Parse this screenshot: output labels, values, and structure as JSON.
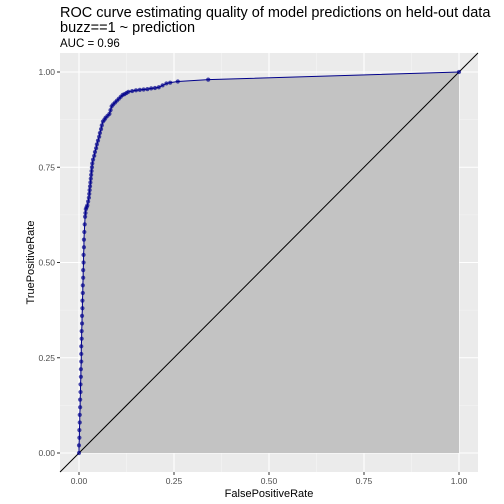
{
  "chart_data": {
    "type": "line",
    "title": "ROC curve estimating quality of model predictions on held-out data",
    "title_line2": "buzz==1 ~ prediction",
    "subtitle": "AUC = 0.96",
    "xlabel": "FalsePositiveRate",
    "ylabel": "TruePositiveRate",
    "xlim": [
      0,
      1
    ],
    "ylim": [
      0,
      1
    ],
    "x_ticks": [
      0.0,
      0.25,
      0.5,
      0.75,
      1.0
    ],
    "x_tick_labels": [
      "0.00",
      "0.25",
      "0.50",
      "0.75",
      "1.00"
    ],
    "y_ticks": [
      0.0,
      0.25,
      0.5,
      0.75,
      1.0
    ],
    "y_tick_labels": [
      "0.00",
      "0.25",
      "0.50",
      "0.75",
      "1.00"
    ],
    "grid": true,
    "diagonal_reference": true,
    "area_fill": true,
    "colors": {
      "panel_background": "#ebebeb",
      "grid_major": "#ffffff",
      "area_fill": "#c3c3c3",
      "curve": "#00008b",
      "diagonal": "#000000"
    },
    "series": [
      {
        "points": [
          [
            0.0,
            0.0
          ],
          [
            0.0,
            0.02
          ],
          [
            0.001,
            0.04
          ],
          [
            0.001,
            0.06
          ],
          [
            0.002,
            0.08
          ],
          [
            0.002,
            0.1
          ],
          [
            0.003,
            0.12
          ],
          [
            0.003,
            0.14
          ],
          [
            0.004,
            0.16
          ],
          [
            0.004,
            0.18
          ],
          [
            0.005,
            0.2
          ],
          [
            0.005,
            0.22
          ],
          [
            0.006,
            0.24
          ],
          [
            0.006,
            0.26
          ],
          [
            0.006,
            0.28
          ],
          [
            0.007,
            0.3
          ],
          [
            0.007,
            0.32
          ],
          [
            0.008,
            0.34
          ],
          [
            0.008,
            0.36
          ],
          [
            0.009,
            0.38
          ],
          [
            0.009,
            0.4
          ],
          [
            0.01,
            0.42
          ],
          [
            0.01,
            0.44
          ],
          [
            0.011,
            0.46
          ],
          [
            0.011,
            0.48
          ],
          [
            0.012,
            0.5
          ],
          [
            0.012,
            0.52
          ],
          [
            0.013,
            0.54
          ],
          [
            0.013,
            0.56
          ],
          [
            0.014,
            0.58
          ],
          [
            0.015,
            0.6
          ],
          [
            0.016,
            0.62
          ],
          [
            0.017,
            0.63
          ],
          [
            0.018,
            0.64
          ],
          [
            0.02,
            0.645
          ],
          [
            0.022,
            0.65
          ],
          [
            0.024,
            0.66
          ],
          [
            0.026,
            0.67
          ],
          [
            0.027,
            0.68
          ],
          [
            0.028,
            0.69
          ],
          [
            0.029,
            0.7
          ],
          [
            0.03,
            0.71
          ],
          [
            0.031,
            0.72
          ],
          [
            0.032,
            0.73
          ],
          [
            0.033,
            0.74
          ],
          [
            0.034,
            0.75
          ],
          [
            0.035,
            0.76
          ],
          [
            0.037,
            0.77
          ],
          [
            0.04,
            0.78
          ],
          [
            0.042,
            0.79
          ],
          [
            0.045,
            0.8
          ],
          [
            0.047,
            0.81
          ],
          [
            0.05,
            0.82
          ],
          [
            0.053,
            0.83
          ],
          [
            0.055,
            0.84
          ],
          [
            0.058,
            0.85
          ],
          [
            0.06,
            0.86
          ],
          [
            0.063,
            0.87
          ],
          [
            0.067,
            0.875
          ],
          [
            0.07,
            0.88
          ],
          [
            0.075,
            0.885
          ],
          [
            0.08,
            0.89
          ],
          [
            0.083,
            0.9
          ],
          [
            0.086,
            0.91
          ],
          [
            0.09,
            0.915
          ],
          [
            0.095,
            0.92
          ],
          [
            0.1,
            0.925
          ],
          [
            0.105,
            0.93
          ],
          [
            0.11,
            0.935
          ],
          [
            0.115,
            0.94
          ],
          [
            0.12,
            0.942
          ],
          [
            0.125,
            0.945
          ],
          [
            0.13,
            0.948
          ],
          [
            0.14,
            0.95
          ],
          [
            0.15,
            0.952
          ],
          [
            0.16,
            0.953
          ],
          [
            0.17,
            0.954
          ],
          [
            0.18,
            0.955
          ],
          [
            0.19,
            0.957
          ],
          [
            0.2,
            0.958
          ],
          [
            0.21,
            0.96
          ],
          [
            0.22,
            0.965
          ],
          [
            0.23,
            0.97
          ],
          [
            0.24,
            0.972
          ],
          [
            0.26,
            0.975
          ],
          [
            0.34,
            0.98
          ],
          [
            1.0,
            1.0
          ]
        ]
      }
    ]
  }
}
